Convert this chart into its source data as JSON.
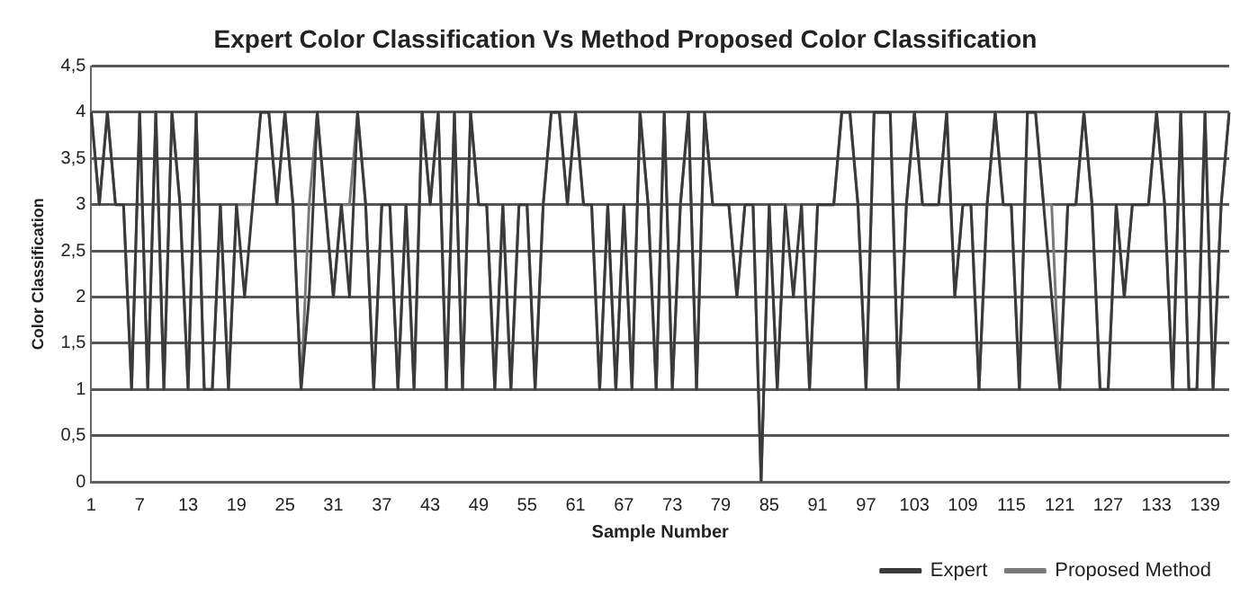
{
  "chart_data": {
    "type": "line",
    "title": "Expert Color Classification Vs Method Proposed Color Classification",
    "xlabel": "Sample Number",
    "ylabel": "Color Classification",
    "categories": [
      "1",
      null,
      null,
      null,
      null,
      null,
      "7",
      null,
      null,
      null,
      null,
      null,
      "13",
      null,
      null,
      null,
      null,
      null,
      "19",
      null,
      null,
      null,
      null,
      null,
      "25",
      null,
      null,
      null,
      null,
      null,
      "31",
      null,
      null,
      null,
      null,
      null,
      "37",
      null,
      null,
      null,
      null,
      null,
      "43",
      null,
      null,
      null,
      null,
      null,
      "49",
      null,
      null,
      null,
      null,
      null,
      "55",
      null,
      null,
      null,
      null,
      null,
      "61",
      null,
      null,
      null,
      null,
      null,
      "67",
      null,
      null,
      null,
      null,
      null,
      "73",
      null,
      null,
      null,
      null,
      null,
      "79",
      null,
      null,
      null,
      null,
      null,
      "85",
      null,
      null,
      null,
      null,
      null,
      "91",
      null,
      null,
      null,
      null,
      null,
      "97",
      null,
      null,
      null,
      null,
      null,
      "103",
      null,
      null,
      null,
      null,
      null,
      "109",
      null,
      null,
      null,
      null,
      null,
      "115",
      null,
      null,
      null,
      null,
      null,
      "121",
      null,
      null,
      null,
      null,
      null,
      "127",
      null,
      null,
      null,
      null,
      null,
      "133",
      null,
      null,
      null,
      null,
      null,
      "139",
      null,
      null,
      null
    ],
    "series": [
      {
        "name": "Expert",
        "color": "#3a3a3a",
        "values": [
          4,
          3,
          4,
          3,
          3,
          1,
          4,
          1,
          4,
          1,
          4,
          3,
          1,
          4,
          1,
          1,
          3,
          1,
          3,
          2,
          3,
          4,
          4,
          3,
          4,
          3,
          1,
          2,
          4,
          3,
          2,
          3,
          2,
          4,
          3,
          1,
          3,
          3,
          1,
          3,
          1,
          4,
          3,
          4,
          1,
          4,
          1,
          4,
          3,
          3,
          1,
          3,
          1,
          3,
          3,
          1,
          3,
          4,
          4,
          3,
          4,
          3,
          3,
          1,
          3,
          1,
          3,
          1,
          4,
          3,
          1,
          4,
          1,
          3,
          4,
          1,
          4,
          3,
          3,
          3,
          2,
          3,
          3,
          0,
          3,
          1,
          3,
          2,
          3,
          1,
          3,
          3,
          3,
          4,
          4,
          3,
          1,
          4,
          4,
          4,
          1,
          3,
          4,
          3,
          3,
          3,
          4,
          2,
          3,
          3,
          1,
          3,
          4,
          3,
          3,
          1,
          4,
          4,
          3,
          2,
          1,
          3,
          3,
          4,
          3,
          1,
          1,
          3,
          2,
          3,
          3,
          3,
          4,
          3,
          1,
          4,
          1,
          1,
          4,
          1,
          3,
          4
        ]
      },
      {
        "name": "Proposed Method",
        "color": "#7a7a7a",
        "values": [
          4,
          3,
          4,
          3,
          3,
          1,
          4,
          1,
          4,
          1,
          4,
          3,
          1,
          4,
          1,
          1,
          3,
          1,
          3,
          3,
          3,
          4,
          4,
          3,
          4,
          3,
          1,
          3,
          4,
          3,
          2,
          3,
          3,
          4,
          3,
          1,
          3,
          3,
          1,
          3,
          1,
          4,
          3,
          4,
          1,
          4,
          1,
          4,
          3,
          3,
          1,
          3,
          1,
          3,
          3,
          1,
          3,
          4,
          4,
          3,
          4,
          3,
          3,
          1,
          3,
          1,
          3,
          1,
          4,
          3,
          1,
          4,
          1,
          3,
          4,
          1,
          4,
          3,
          3,
          3,
          2,
          3,
          3,
          0,
          3,
          1,
          3,
          3,
          3,
          1,
          3,
          3,
          3,
          4,
          4,
          3,
          1,
          4,
          4,
          4,
          1,
          3,
          4,
          3,
          3,
          3,
          4,
          2,
          3,
          3,
          1,
          3,
          4,
          3,
          3,
          1,
          4,
          4,
          3,
          3,
          1,
          3,
          3,
          4,
          3,
          1,
          1,
          3,
          2,
          3,
          3,
          3,
          4,
          3,
          1,
          4,
          1,
          1,
          4,
          1,
          3,
          4
        ]
      }
    ],
    "ylim": [
      0,
      4.5
    ],
    "yticks": [
      0,
      {
        "value": 0.5,
        "label": "0,5"
      },
      1,
      {
        "value": 1.5,
        "label": "1,5"
      },
      2,
      {
        "value": 2.5,
        "label": "2,5"
      },
      3,
      {
        "value": 3.5,
        "label": "3,5"
      },
      4,
      {
        "value": 4.5,
        "label": "4,5"
      }
    ],
    "grid": "y",
    "legend": "bottom right",
    "marker": "none",
    "line_style": "solid"
  }
}
